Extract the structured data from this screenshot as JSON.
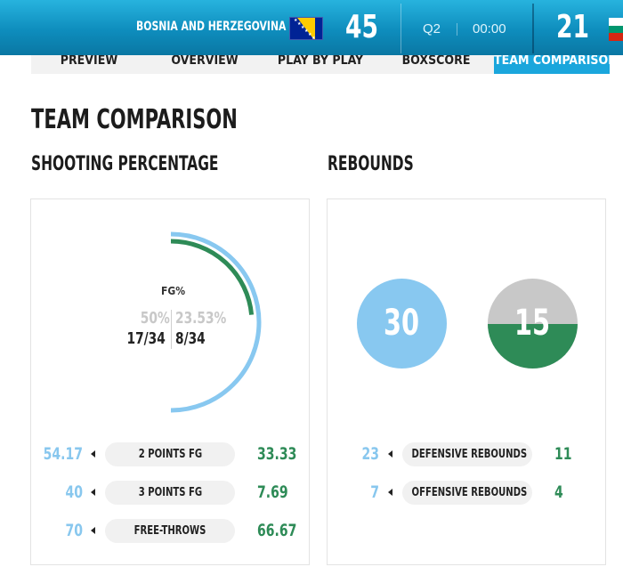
{
  "header": {
    "home_team": "BOSNIA AND HERZEGOVINA",
    "home_score": "45",
    "quarter": "Q2",
    "clock": "00:00",
    "away_score": "21",
    "home_flag_icon": "bosnia-flag-icon",
    "away_flag_icon": "bulgaria-flag-icon",
    "colors": {
      "bar": "#0e8dbd"
    }
  },
  "tabs": [
    {
      "label": "PREVIEW",
      "active": false
    },
    {
      "label": "OVERVIEW",
      "active": false
    },
    {
      "label": "PLAY BY PLAY",
      "active": false
    },
    {
      "label": "BOXSCORE",
      "active": false
    },
    {
      "label": "TEAM COMPARISON",
      "active": true
    }
  ],
  "page_title": "TEAM COMPARISON",
  "shooting": {
    "title": "SHOOTING PERCENTAGE",
    "fg_label": "FG%",
    "home_pct": "50%",
    "away_pct": "23.53%",
    "home_made": "17/34",
    "away_made": "8/34",
    "home_pct_value": 50,
    "away_pct_value": 23.53,
    "rows": [
      {
        "home": "54.17",
        "label": "2 POINTS FG",
        "away": "33.33"
      },
      {
        "home": "40",
        "label": "3 POINTS FG",
        "away": "7.69"
      },
      {
        "home": "70",
        "label": "FREE-THROWS",
        "away": "66.67"
      }
    ]
  },
  "rebounds": {
    "title": "REBOUNDS",
    "home_total": "30",
    "away_total": "15",
    "away_fill_fraction": 0.5,
    "rows": [
      {
        "home": "23",
        "label": "DEFENSIVE REBOUNDS",
        "away": "11"
      },
      {
        "home": "7",
        "label": "OFFENSIVE REBOUNDS",
        "away": "4"
      }
    ]
  },
  "colors": {
    "home": "#88c7ee",
    "away": "#2e8b57",
    "accent_tab": "#1aa6dc"
  }
}
